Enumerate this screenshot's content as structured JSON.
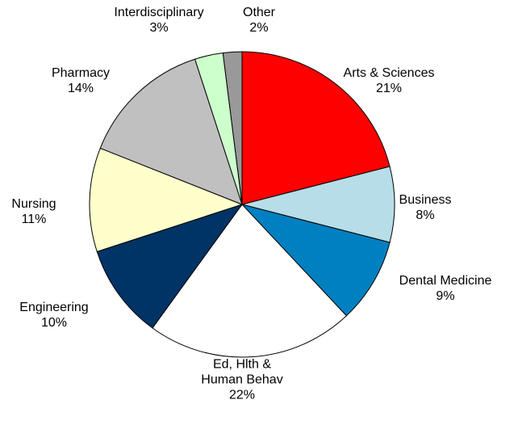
{
  "chart_data": {
    "type": "pie",
    "categories": [
      "Arts & Sciences",
      "Business",
      "Dental Medicine",
      "Ed, Hlth & Human Behav",
      "Engineering",
      "Nursing",
      "Pharmacy",
      "Interdisciplinary",
      "Other"
    ],
    "values": [
      21,
      8,
      9,
      22,
      10,
      11,
      14,
      3,
      2
    ],
    "value_labels": [
      "21%",
      "8%",
      "9%",
      "22%",
      "10%",
      "11%",
      "14%",
      "3%",
      "2%"
    ],
    "colors": [
      "#ff0000",
      "#b7dde8",
      "#0080c0",
      "#ffffff",
      "#003366",
      "#ffffcc",
      "#c0c0c0",
      "#ccffcc",
      "#999999"
    ]
  }
}
